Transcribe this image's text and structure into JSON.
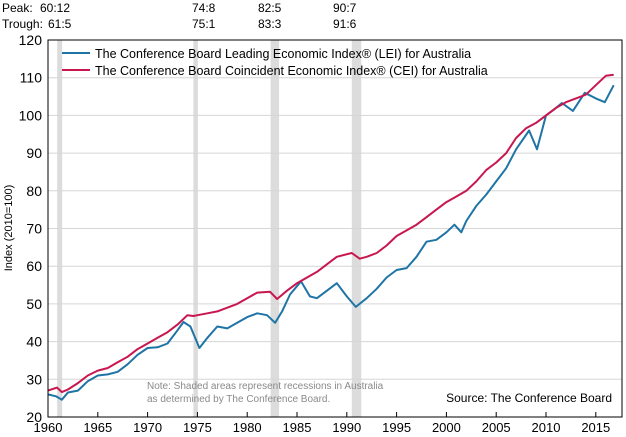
{
  "header": {
    "peak_label": "Peak:",
    "trough_label": "Trough:",
    "peaks": [
      "60:12",
      "74:8",
      "82:5",
      "90:7"
    ],
    "troughs": [
      "61:5",
      "75:1",
      "83:3",
      "91:6"
    ]
  },
  "chart_data": {
    "type": "line",
    "title": "",
    "xlabel": "",
    "ylabel": "Index (2010=100)",
    "xlim": [
      1960,
      2017.6
    ],
    "ylim": [
      20,
      120
    ],
    "yticks": [
      20,
      30,
      40,
      50,
      60,
      70,
      80,
      90,
      100,
      110,
      120
    ],
    "xticks": [
      1960,
      1965,
      1970,
      1975,
      1980,
      1985,
      1990,
      1995,
      2000,
      2005,
      2010,
      2015
    ],
    "grid": "horizontal",
    "legend_position": "top-left",
    "recessions": [
      [
        1960.92,
        1961.42
      ],
      [
        1974.6,
        1975.05
      ],
      [
        1982.35,
        1983.2
      ],
      [
        1990.5,
        1991.45
      ]
    ],
    "series": [
      {
        "name": "The Conference Board Leading Economic Index®  (LEI) for Australia",
        "color": "#1f74a6",
        "points": [
          [
            1960,
            26
          ],
          [
            1960.8,
            25.5
          ],
          [
            1961.4,
            24.6
          ],
          [
            1962,
            26.5
          ],
          [
            1963,
            27
          ],
          [
            1964,
            29.5
          ],
          [
            1965,
            31
          ],
          [
            1966,
            31.3
          ],
          [
            1967,
            32
          ],
          [
            1968,
            34
          ],
          [
            1969,
            36.5
          ],
          [
            1970,
            38.3
          ],
          [
            1971,
            38.5
          ],
          [
            1972,
            39.5
          ],
          [
            1973,
            43
          ],
          [
            1973.6,
            45.2
          ],
          [
            1974.3,
            44
          ],
          [
            1975.2,
            38.3
          ],
          [
            1976,
            41
          ],
          [
            1977,
            44
          ],
          [
            1978,
            43.5
          ],
          [
            1979,
            45
          ],
          [
            1980,
            46.5
          ],
          [
            1981,
            47.5
          ],
          [
            1982,
            47
          ],
          [
            1982.8,
            45
          ],
          [
            1983.5,
            48
          ],
          [
            1984.3,
            52.5
          ],
          [
            1985.4,
            56
          ],
          [
            1986.3,
            52
          ],
          [
            1987,
            51.5
          ],
          [
            1988,
            53.5
          ],
          [
            1989,
            55.5
          ],
          [
            1990,
            52
          ],
          [
            1990.9,
            49.2
          ],
          [
            1992,
            51.5
          ],
          [
            1993,
            54
          ],
          [
            1994,
            57
          ],
          [
            1995,
            59
          ],
          [
            1996,
            59.5
          ],
          [
            1997,
            62.5
          ],
          [
            1998,
            66.5
          ],
          [
            1999,
            67
          ],
          [
            2000,
            69
          ],
          [
            2000.8,
            71
          ],
          [
            2001.5,
            69
          ],
          [
            2002,
            72
          ],
          [
            2003,
            76
          ],
          [
            2004,
            79
          ],
          [
            2005,
            82.5
          ],
          [
            2006,
            86
          ],
          [
            2007,
            91
          ],
          [
            2008.3,
            96
          ],
          [
            2009.1,
            91
          ],
          [
            2010,
            100
          ],
          [
            2011,
            102
          ],
          [
            2011.6,
            103.3
          ],
          [
            2012.7,
            101.2
          ],
          [
            2013.9,
            106
          ],
          [
            2015,
            104.5
          ],
          [
            2015.9,
            103.5
          ],
          [
            2016.8,
            108
          ]
        ]
      },
      {
        "name": "The Conference Board Coincident Economic Index®  (CEI) for Australia",
        "color": "#c8174f",
        "points": [
          [
            1960,
            27
          ],
          [
            1960.9,
            27.8
          ],
          [
            1961.4,
            26.6
          ],
          [
            1962,
            27.3
          ],
          [
            1963,
            29
          ],
          [
            1964,
            31
          ],
          [
            1965,
            32.3
          ],
          [
            1966,
            33
          ],
          [
            1967,
            34.5
          ],
          [
            1968,
            36
          ],
          [
            1969,
            38
          ],
          [
            1970,
            39.5
          ],
          [
            1971,
            41
          ],
          [
            1972,
            42.5
          ],
          [
            1973,
            44.5
          ],
          [
            1974,
            47
          ],
          [
            1974.6,
            46.8
          ],
          [
            1975,
            47
          ],
          [
            1976,
            47.5
          ],
          [
            1977,
            48
          ],
          [
            1978,
            49
          ],
          [
            1979,
            50
          ],
          [
            1980,
            51.5
          ],
          [
            1981,
            53
          ],
          [
            1982.3,
            53.2
          ],
          [
            1983,
            51.3
          ],
          [
            1984,
            53.5
          ],
          [
            1985,
            55.5
          ],
          [
            1986,
            57
          ],
          [
            1987,
            58.5
          ],
          [
            1988,
            60.5
          ],
          [
            1989,
            62.5
          ],
          [
            1990.5,
            63.5
          ],
          [
            1991.3,
            62
          ],
          [
            1992,
            62.5
          ],
          [
            1993,
            63.5
          ],
          [
            1994,
            65.5
          ],
          [
            1995,
            68
          ],
          [
            1996,
            69.5
          ],
          [
            1997,
            71
          ],
          [
            1998,
            73
          ],
          [
            1999,
            75
          ],
          [
            2000,
            77
          ],
          [
            2001,
            78.5
          ],
          [
            2002,
            80
          ],
          [
            2003,
            82.5
          ],
          [
            2004,
            85.5
          ],
          [
            2005,
            87.5
          ],
          [
            2006,
            90
          ],
          [
            2007,
            94
          ],
          [
            2008,
            96.6
          ],
          [
            2009,
            98
          ],
          [
            2010,
            100
          ],
          [
            2011,
            102
          ],
          [
            2012,
            103.5
          ],
          [
            2013,
            104.5
          ],
          [
            2014,
            105.5
          ],
          [
            2015,
            108
          ],
          [
            2016,
            110.5
          ],
          [
            2016.8,
            110.8
          ]
        ]
      }
    ],
    "annotations": {
      "note_line1": "Note: Shaded areas represent recessions in Australia",
      "note_line2": "as determined by The Conference Board.",
      "source": "Source: The Conference Board"
    }
  }
}
